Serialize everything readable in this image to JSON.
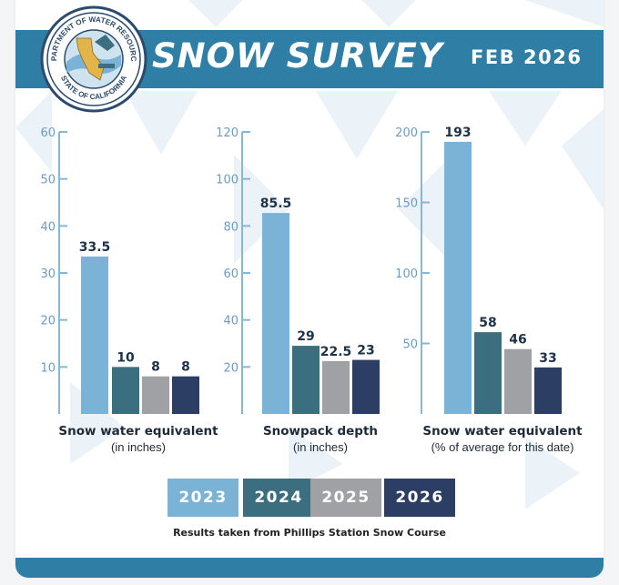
{
  "header": {
    "title": "SNOW SURVEY",
    "date": "FEB 2026",
    "seal_text_top": "DEPARTMENT OF WATER RESOURCES",
    "seal_text_bottom": "STATE OF CALIFORNIA"
  },
  "colors": {
    "banner": "#2f7ea6",
    "axis": "#86b8d6",
    "tick_text": "#6a9cc0",
    "2023": "#7ab3d6",
    "2024": "#3b6f80",
    "2025": "#a0a1a5",
    "2026": "#2c3e63"
  },
  "legend": [
    "2023",
    "2024",
    "2025",
    "2026"
  ],
  "chart_data": [
    {
      "type": "bar",
      "categories": [
        "2023",
        "2024",
        "2025",
        "2026"
      ],
      "values": [
        33.5,
        10,
        8,
        8
      ],
      "title": "Snow water equivalent",
      "subtitle": "(in inches)",
      "ylim": [
        0,
        60
      ],
      "yticks": [
        10,
        20,
        30,
        40,
        50,
        60
      ],
      "labels": [
        "33.5",
        "10",
        "8",
        "8"
      ]
    },
    {
      "type": "bar",
      "categories": [
        "2023",
        "2024",
        "2025",
        "2026"
      ],
      "values": [
        85.5,
        29,
        22.5,
        23
      ],
      "title": "Snowpack depth",
      "subtitle": "(in inches)",
      "ylim": [
        0,
        120
      ],
      "yticks": [
        20,
        40,
        60,
        80,
        100,
        120
      ],
      "labels": [
        "85.5",
        "29",
        "22.5",
        "23"
      ]
    },
    {
      "type": "bar",
      "categories": [
        "2023",
        "2024",
        "2025",
        "2026"
      ],
      "values": [
        193,
        58,
        46,
        33
      ],
      "title": "Snow water equivalent",
      "subtitle": "(% of average for this date)",
      "ylim": [
        0,
        200
      ],
      "yticks": [
        50,
        100,
        150,
        200
      ],
      "labels": [
        "193",
        "58",
        "46",
        "33"
      ]
    }
  ],
  "footer": {
    "source": "Results taken from Phillips Station Snow Course"
  }
}
